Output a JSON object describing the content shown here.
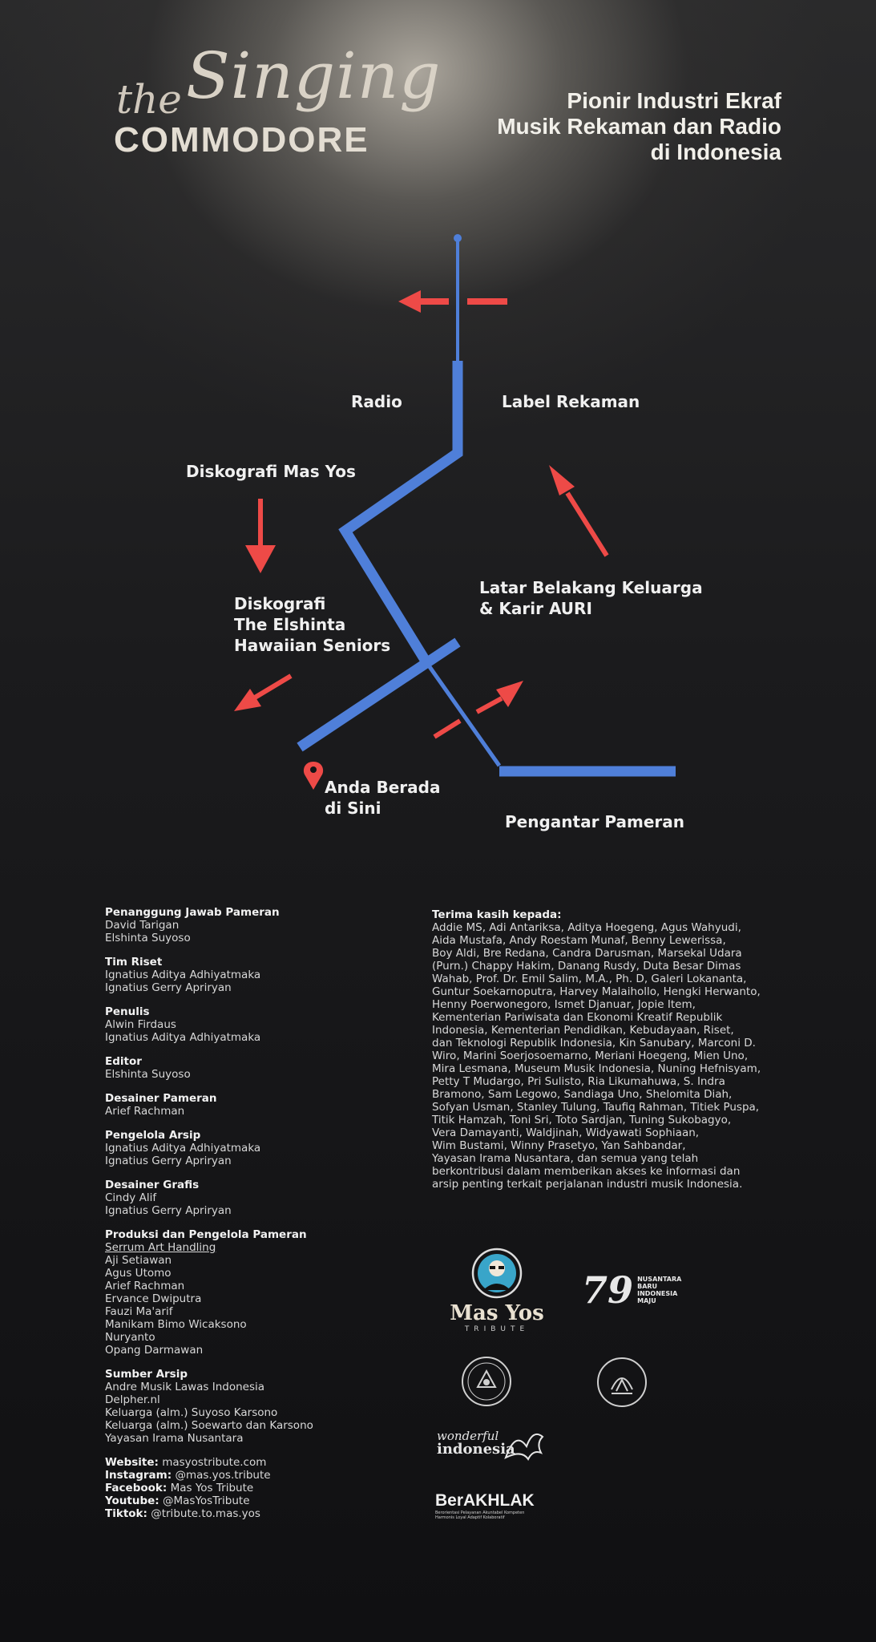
{
  "header": {
    "title_the": "the",
    "title_singing": "Singing",
    "title_commodore": "COMMODORE",
    "subtitle_lines": [
      "Pionir Industri Ekraf",
      "Musik Rekaman dan Radio",
      "di Indonesia"
    ]
  },
  "map": {
    "route_color": "#4f7fd9",
    "arrow_color": "#ee4a47",
    "labels": {
      "radio": "Radio",
      "label_rekaman": "Label Rekaman",
      "diskografi_mas_yos": "Diskografi Mas Yos",
      "latar_line1": "Latar Belakang Keluarga",
      "latar_line2": "& Karir AURI",
      "elshinta_line1": "Diskografi",
      "elshinta_line2": "The Elshinta",
      "elshinta_line3": "Hawaiian Seniors",
      "here_line1": "Anda Berada",
      "here_line2": "di Sini",
      "pengantar": "Pengantar Pameran"
    }
  },
  "credits": [
    {
      "heading": "Penanggung Jawab Pameran",
      "names": [
        "David Tarigan",
        "Elshinta Suyoso"
      ]
    },
    {
      "heading": "Tim Riset",
      "names": [
        "Ignatius Aditya Adhiyatmaka",
        "Ignatius Gerry Apriryan"
      ]
    },
    {
      "heading": "Penulis",
      "names": [
        "Alwin Firdaus",
        "Ignatius Aditya Adhiyatmaka"
      ]
    },
    {
      "heading": "Editor",
      "names": [
        "Elshinta Suyoso"
      ]
    },
    {
      "heading": "Desainer Pameran",
      "names": [
        "Arief Rachman"
      ]
    },
    {
      "heading": "Pengelola Arsip",
      "names": [
        "Ignatius Aditya Adhiyatmaka",
        "Ignatius Gerry Apriryan"
      ]
    },
    {
      "heading": "Desainer Grafis",
      "names": [
        "Cindy Alif",
        "Ignatius Gerry Apriryan"
      ]
    },
    {
      "heading": "Produksi dan Pengelola Pameran",
      "names": [
        "Serrum Art Handling",
        "Aji Setiawan",
        "Agus Utomo",
        "Arief Rachman",
        "Ervance Dwiputra",
        "Fauzi Ma'arif",
        "Manikam Bimo Wicaksono",
        "Nuryanto",
        "Opang Darmawan"
      ]
    },
    {
      "heading": "Sumber Arsip",
      "names": [
        "Andre Musik Lawas Indonesia",
        "Delpher.nl",
        "Keluarga (alm.) Suyoso Karsono",
        "Keluarga (alm.) Soewarto dan Karsono",
        "Yayasan Irama Nusantara"
      ]
    }
  ],
  "contacts": [
    {
      "label": "Website:",
      "value": "masyostribute.com"
    },
    {
      "label": "Instagram:",
      "value": "@mas.yos.tribute"
    },
    {
      "label": "Facebook:",
      "value": "Mas Yos Tribute"
    },
    {
      "label": "Youtube:",
      "value": "@MasYosTribute"
    },
    {
      "label": "Tiktok:",
      "value": "@tribute.to.mas.yos"
    }
  ],
  "thanks": {
    "heading": "Terima kasih kepada:",
    "lines": [
      "Addie MS, Adi Antariksa, Aditya Hoegeng, Agus Wahyudi,",
      "Aida Mustafa, Andy Roestam Munaf, Benny Lewerissa,",
      "Boy Aldi, Bre Redana, Candra Darusman, Marsekal Udara",
      "(Purn.) Chappy Hakim, Danang Rusdy, Duta Besar Dimas",
      "Wahab, Prof. Dr. Emil Salim, M.A., Ph. D, Galeri Lokananta,",
      "Guntur Soekarnoputra, Harvey Malaihollo, Hengki Herwanto,",
      "Henny Poerwonegoro, Ismet Djanuar, Jopie Item,",
      "Kementerian Pariwisata dan Ekonomi Kreatif Republik",
      "Indonesia, Kementerian Pendidikan, Kebudayaan, Riset,",
      "dan Teknologi Republik Indonesia, Kin Sanubary, Marconi D.",
      "Wiro,  Marini Soerjosoemarno, Meriani Hoegeng, Mien Uno,",
      "Mira Lesmana, Museum Musik Indonesia, Nuning Hefnisyam,",
      "Petty T Mudargo, Pri Sulisto, Ria Likumahuwa, S. Indra",
      "Bramono, Sam Legowo, Sandiaga Uno, Shelomita Diah,",
      "Sofyan Usman, Stanley Tulung, Taufiq Rahman, Titiek Puspa,",
      "Titik Hamzah, Toni Sri, Toto Sardjan, Tuning Sukobagyo,",
      "Vera Damayanti, Waldjinah, Widyawati Sophiaan,",
      "Wim Bustami, Winny Prasetyo, Yan Sahbandar,",
      "Yayasan Irama Nusantara, dan semua yang telah",
      "berkontribusi dalam memberikan akses ke informasi dan",
      "arsip penting terkait perjalanan industri musik Indonesia."
    ]
  },
  "logos": {
    "masyos_name": "Mas Yos",
    "masyos_sub": "TRIBUTE",
    "ri79_number": "79",
    "ri79_lines": [
      "NUSANTARA",
      "BARU",
      "INDONESIA",
      "MAJU"
    ],
    "wonderful_line1": "wonderful",
    "wonderful_line2": "indonesia",
    "berakhlak_name": "BerAKHLAK",
    "berakhlak_tag_line1": "Berorientasi Pelayanan Akuntabel Kompeten",
    "berakhlak_tag_line2": "Harmonis Loyal Adaptif Kolaboratif"
  }
}
